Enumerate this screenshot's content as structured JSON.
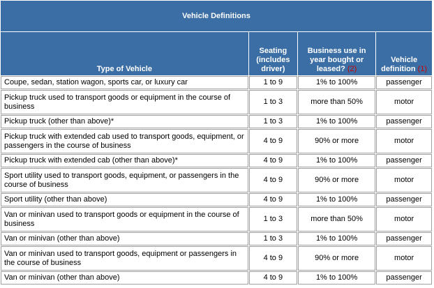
{
  "table": {
    "title": "Vehicle Definitions",
    "columns": [
      {
        "text": "Type of Vehicle"
      },
      {
        "text": "Seating (includes driver)"
      },
      {
        "text": "Business use in year bought or leased?",
        "note": "(2)"
      },
      {
        "text": "Vehicle definition",
        "note": "(1)"
      }
    ],
    "rows": [
      [
        "Coupe, sedan, station wagon, sports car, or luxury car",
        "1 to 9",
        "1% to 100%",
        "passenger"
      ],
      [
        "Pickup truck used to transport goods or equipment in the course of business",
        "1 to 3",
        "more than 50%",
        "motor"
      ],
      [
        "Pickup truck (other than above)*",
        "1 to 3",
        "1% to 100%",
        "passenger"
      ],
      [
        "Pickup truck with extended cab used to transport goods, equipment, or passengers in the course of business",
        "4 to 9",
        "90% or more",
        "motor"
      ],
      [
        "Pickup truck with extended cab (other than above)*",
        "4 to 9",
        "1% to 100%",
        "passenger"
      ],
      [
        "Sport utility used to transport goods, equipment, or passengers in the course of business",
        "4 to 9",
        "90% or more",
        "motor"
      ],
      [
        "Sport utility (other than above)",
        "4 to 9",
        "1% to 100%",
        "passenger"
      ],
      [
        "Van or minivan used to transport goods or equipment in the course of business",
        "1 to 3",
        "more than 50%",
        "motor"
      ],
      [
        "Van or minivan (other than above)",
        "1 to 3",
        "1% to 100%",
        "passenger"
      ],
      [
        "Van or minivan used to transport goods, equipment or passengers in the course of business",
        "4 to 9",
        "90% or more",
        "motor"
      ],
      [
        "Van or minivan (other than above)",
        "4 to 9",
        "1% to 100%",
        "passenger"
      ]
    ]
  }
}
